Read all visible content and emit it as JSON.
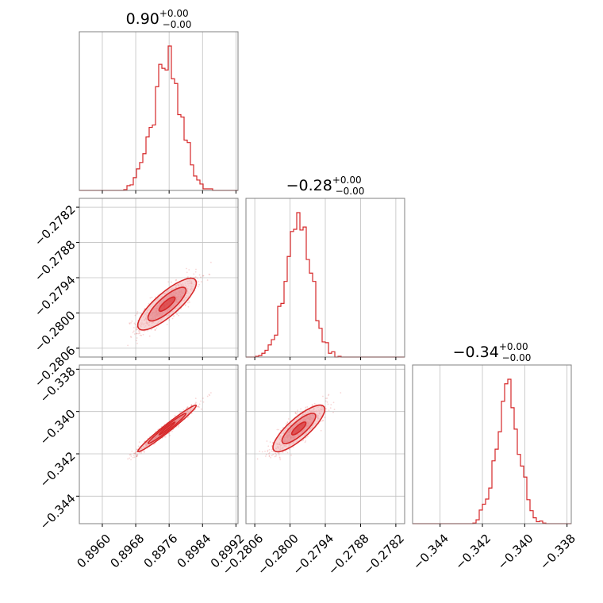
{
  "colors": {
    "accent": "#d62728",
    "fill_light": "#f2b9bb",
    "fill_mid": "#e57b80",
    "fill_dark": "#d62728",
    "grid": "#c0c0c0",
    "frame": "#808080"
  },
  "chart_data": {
    "type": "corner",
    "params": [
      {
        "title_value": "0.90",
        "title_sup": "+0.00",
        "title_sub": "−0.00",
        "range": [
          0.89545,
          0.89925
        ],
        "ticks": [
          0.896,
          0.8968,
          0.8976,
          0.8984,
          0.8992
        ],
        "tick_labels": [
          "0.8960",
          "0.8968",
          "0.8976",
          "0.8984",
          "0.8992"
        ],
        "mean": 0.89755,
        "sd": 0.00035
      },
      {
        "title_value": "−0.28",
        "title_sup": "+0.00",
        "title_sub": "−0.00",
        "range": [
          -0.28075,
          -0.27805
        ],
        "ticks": [
          -0.2806,
          -0.28,
          -0.2794,
          -0.2788,
          -0.2782
        ],
        "tick_labels": [
          "−0.2806",
          "−0.2800",
          "−0.2794",
          "−0.2788",
          "−0.2782"
        ],
        "mean": -0.27985,
        "sd": 0.00022
      },
      {
        "title_value": "−0.34",
        "title_sup": "+0.00",
        "title_sub": "−0.00",
        "range": [
          -0.3453,
          -0.3378
        ],
        "ticks": [
          -0.344,
          -0.342,
          -0.34,
          -0.338
        ],
        "tick_labels": [
          "−0.344",
          "−0.342",
          "−0.340",
          "−0.338"
        ],
        "mean": -0.3408,
        "sd": 0.00055
      }
    ],
    "correlations": {
      "1,0": 0.82,
      "2,0": 0.98,
      "2,1": 0.82
    },
    "histogram_bins": 50,
    "grid": true
  }
}
